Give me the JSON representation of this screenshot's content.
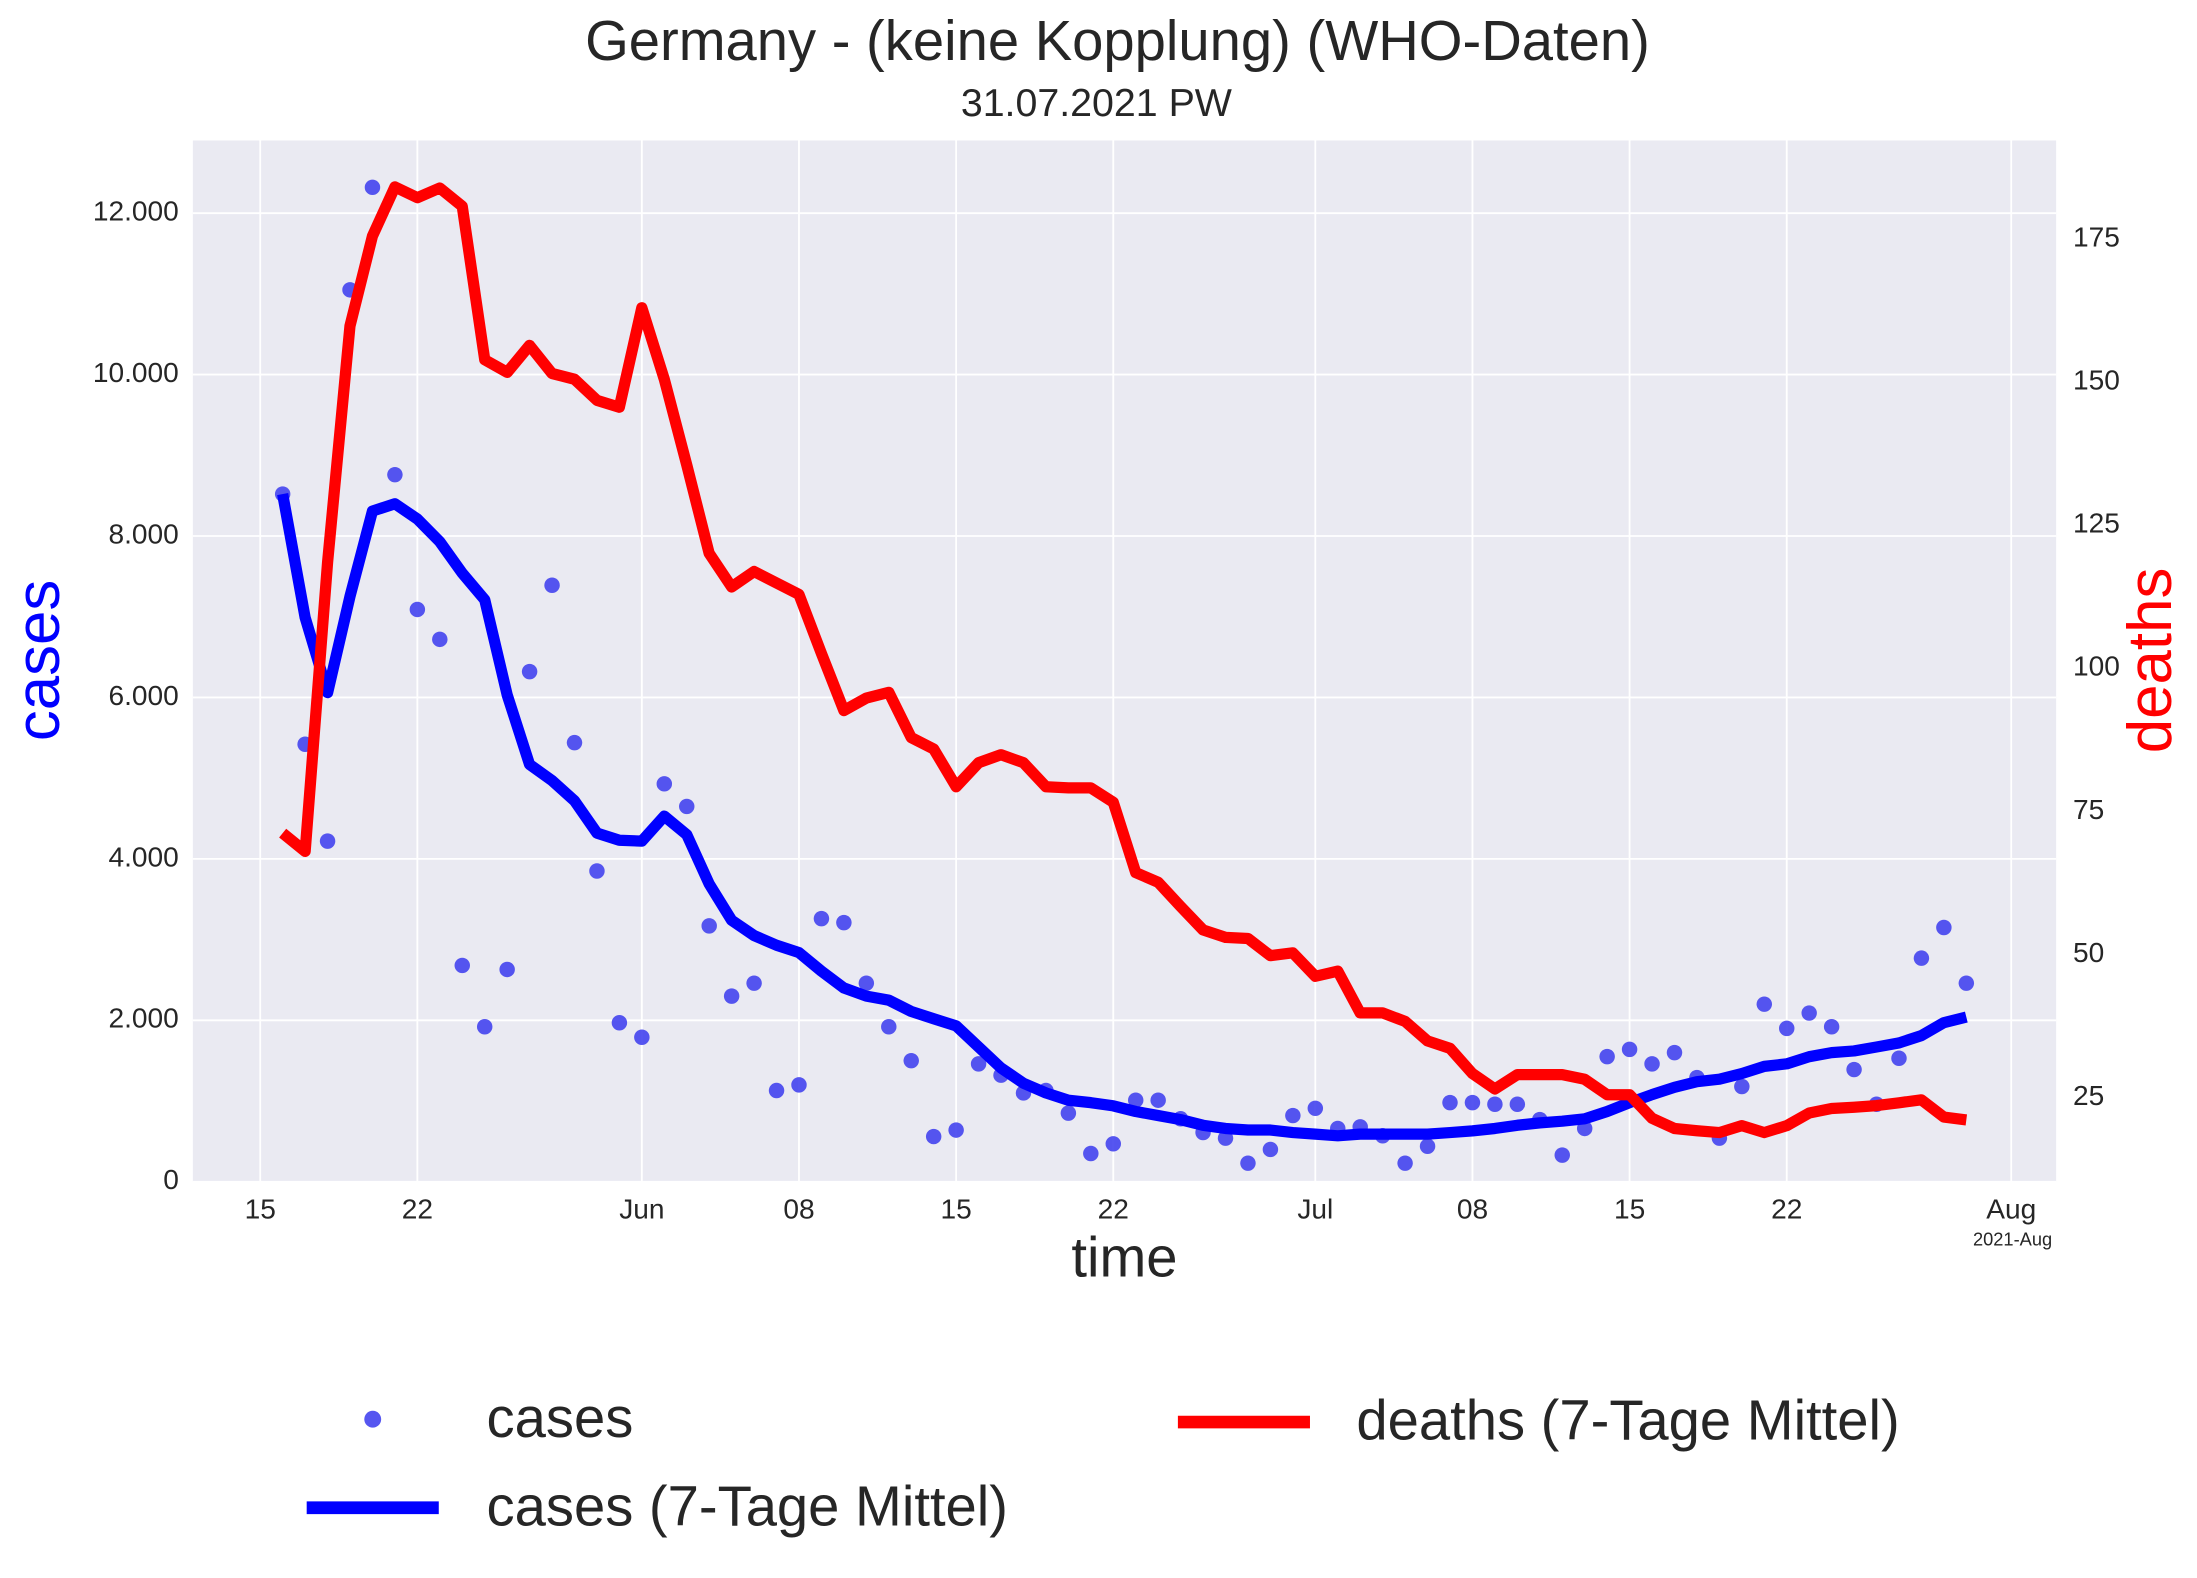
{
  "chart_data": {
    "type": "line",
    "title": "Germany - (keine Kopplung)  (WHO-Daten)",
    "subtitle": "31.07.2021 PW",
    "x_label": "time",
    "x_offset_label": "2021-Aug",
    "y_label": "cases",
    "y2_label": "deaths",
    "grid": true,
    "x": [
      "2021-05-16",
      "2021-05-17",
      "2021-05-18",
      "2021-05-19",
      "2021-05-20",
      "2021-05-21",
      "2021-05-22",
      "2021-05-23",
      "2021-05-24",
      "2021-05-25",
      "2021-05-26",
      "2021-05-27",
      "2021-05-28",
      "2021-05-29",
      "2021-05-30",
      "2021-05-31",
      "2021-06-01",
      "2021-06-02",
      "2021-06-03",
      "2021-06-04",
      "2021-06-05",
      "2021-06-06",
      "2021-06-07",
      "2021-06-08",
      "2021-06-09",
      "2021-06-10",
      "2021-06-11",
      "2021-06-12",
      "2021-06-13",
      "2021-06-14",
      "2021-06-15",
      "2021-06-16",
      "2021-06-17",
      "2021-06-18",
      "2021-06-19",
      "2021-06-20",
      "2021-06-21",
      "2021-06-22",
      "2021-06-23",
      "2021-06-24",
      "2021-06-25",
      "2021-06-26",
      "2021-06-27",
      "2021-06-28",
      "2021-06-29",
      "2021-06-30",
      "2021-07-01",
      "2021-07-02",
      "2021-07-03",
      "2021-07-04",
      "2021-07-05",
      "2021-07-06",
      "2021-07-07",
      "2021-07-08",
      "2021-07-09",
      "2021-07-10",
      "2021-07-11",
      "2021-07-12",
      "2021-07-13",
      "2021-07-14",
      "2021-07-15",
      "2021-07-16",
      "2021-07-17",
      "2021-07-18",
      "2021-07-19",
      "2021-07-20",
      "2021-07-21",
      "2021-07-22",
      "2021-07-23",
      "2021-07-24",
      "2021-07-25",
      "2021-07-26",
      "2021-07-27",
      "2021-07-28",
      "2021-07-29",
      "2021-07-30"
    ],
    "xlim": [
      "2021-05-12",
      "2021-08-03"
    ],
    "xticks": [
      {
        "value": "2021-05-15",
        "label": "15"
      },
      {
        "value": "2021-05-22",
        "label": "22"
      },
      {
        "value": "2021-06-01",
        "label": "Jun"
      },
      {
        "value": "2021-06-08",
        "label": "08"
      },
      {
        "value": "2021-06-15",
        "label": "15"
      },
      {
        "value": "2021-06-22",
        "label": "22"
      },
      {
        "value": "2021-07-01",
        "label": "Jul"
      },
      {
        "value": "2021-07-08",
        "label": "08"
      },
      {
        "value": "2021-07-15",
        "label": "15"
      },
      {
        "value": "2021-07-22",
        "label": "22"
      },
      {
        "value": "2021-08-01",
        "label": "Aug"
      }
    ],
    "ylim": [
      0,
      12900
    ],
    "yticks": [
      0,
      {
        "value": 2000,
        "label": "2.000"
      },
      {
        "value": 4000,
        "label": "4.000"
      },
      {
        "value": 6000,
        "label": "6.000"
      },
      {
        "value": 8000,
        "label": "8.000"
      },
      {
        "value": 10000,
        "label": "10.000"
      },
      {
        "value": 12000,
        "label": "12.000"
      }
    ],
    "y2lim": [
      10.3,
      192.2
    ],
    "y2ticks": [
      25,
      50,
      75,
      100,
      125,
      150,
      175
    ],
    "series": [
      {
        "name": "cases",
        "color": "#4444ee",
        "style": "scatter",
        "axis": "y",
        "values": [
          8520,
          5420,
          4220,
          11050,
          12320,
          8760,
          7090,
          6720,
          2680,
          1920,
          2630,
          6320,
          7390,
          5440,
          3850,
          1970,
          1790,
          4930,
          4650,
          3170,
          2300,
          2460,
          1130,
          1200,
          3260,
          3210,
          2460,
          1920,
          1500,
          560,
          640,
          1460,
          1320,
          1100,
          1130,
          850,
          350,
          470,
          1010,
          1010,
          780,
          610,
          540,
          230,
          400,
          820,
          910,
          660,
          680,
          570,
          230,
          440,
          980,
          980,
          960,
          960,
          770,
          330,
          660,
          1550,
          1640,
          1460,
          1600,
          1290,
          540,
          1180,
          2200,
          1900,
          2090,
          1920,
          1390,
          960,
          1530,
          2770,
          3150,
          2460
        ]
      },
      {
        "name": "cases (7-Tage Mittel)",
        "color": "#0000ff",
        "style": "line",
        "axis": "y",
        "values": [
          8520,
          6990,
          6060,
          7250,
          8310,
          8400,
          8210,
          7930,
          7540,
          7210,
          6030,
          5170,
          4970,
          4720,
          4320,
          4230,
          4220,
          4530,
          4300,
          3690,
          3240,
          3050,
          2930,
          2840,
          2610,
          2400,
          2300,
          2250,
          2110,
          2020,
          1930,
          1670,
          1410,
          1220,
          1100,
          1010,
          980,
          940,
          870,
          820,
          770,
          700,
          660,
          640,
          640,
          610,
          590,
          570,
          590,
          590,
          590,
          590,
          610,
          630,
          660,
          700,
          730,
          750,
          780,
          870,
          980,
          1080,
          1170,
          1240,
          1270,
          1340,
          1430,
          1460,
          1550,
          1600,
          1620,
          1670,
          1720,
          1810,
          1970,
          2040
        ]
      },
      {
        "name": "deaths (7-Tage Mittel)",
        "color": "#ff0000",
        "style": "line",
        "axis": "y2",
        "values": [
          71.2,
          68.0,
          118.6,
          159.8,
          175.5,
          184.1,
          182.2,
          183.9,
          180.7,
          153.9,
          151.7,
          156.4,
          151.5,
          150.5,
          146.8,
          145.6,
          163.0,
          150.5,
          135.5,
          120.1,
          114.2,
          116.9,
          114.9,
          112.9,
          102.6,
          92.6,
          94.8,
          95.8,
          87.9,
          85.9,
          79.3,
          83.5,
          84.9,
          83.5,
          79.3,
          79.1,
          79.1,
          76.6,
          64.3,
          62.6,
          58.4,
          54.3,
          53.0,
          52.8,
          49.8,
          50.3,
          46.2,
          47.1,
          39.8,
          39.8,
          38.3,
          34.9,
          33.6,
          29.2,
          26.5,
          29.0,
          29.0,
          29.0,
          28.2,
          25.5,
          25.5,
          21.4,
          19.6,
          19.2,
          18.9,
          20.1,
          18.9,
          20.1,
          22.3,
          23.1,
          23.3,
          23.6,
          24.1,
          24.6,
          21.6,
          21.1
        ]
      }
    ]
  }
}
